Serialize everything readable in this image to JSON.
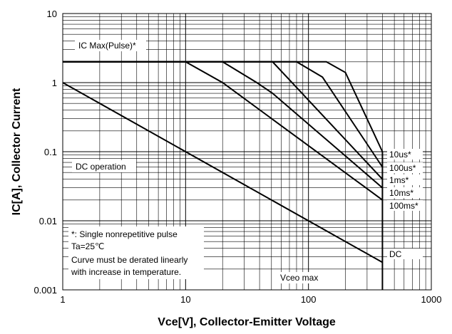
{
  "chart_data": {
    "type": "line",
    "xlabel": "Vce[V], Collector-Emitter Voltage",
    "ylabel": "IC[A], Collector Current",
    "xscale": "log",
    "yscale": "log",
    "xlim": [
      1,
      1000
    ],
    "ylim": [
      0.001,
      10
    ],
    "x_ticks": [
      "1",
      "10",
      "100",
      "1000"
    ],
    "y_ticks": [
      "0.001",
      "0.01",
      "0.1",
      "1",
      "10"
    ],
    "grid": true,
    "series": [
      {
        "name": "10us*",
        "x": [
          1,
          140,
          200,
          400
        ],
        "y": [
          2,
          2,
          1.4,
          0.1
        ]
      },
      {
        "name": "100us*",
        "x": [
          1,
          80,
          130,
          400
        ],
        "y": [
          2,
          2,
          1.2,
          0.06
        ]
      },
      {
        "name": "1ms*",
        "x": [
          1,
          51,
          400
        ],
        "y": [
          2,
          2,
          0.04
        ]
      },
      {
        "name": "10ms*",
        "x": [
          1,
          20,
          38,
          51,
          400
        ],
        "y": [
          2,
          2,
          1.0,
          0.7,
          0.03
        ]
      },
      {
        "name": "100ms*",
        "x": [
          1,
          10,
          20,
          400
        ],
        "y": [
          2,
          2,
          1.0,
          0.02
        ]
      },
      {
        "name": "DC",
        "x": [
          1,
          400
        ],
        "y": [
          1.0,
          0.0025
        ]
      }
    ],
    "vertical_limit": {
      "x": 400,
      "y": [
        0.001,
        0.1
      ]
    },
    "annotations": {
      "ic_max": "IC Max(Pulse)*",
      "dc_operation": "DC operation",
      "note_line1": "*: Single nonrepetitive pulse",
      "note_line2": "Ta=25℃",
      "note_line3": "Curve must be derated linearly",
      "note_line4": "with increase in temperature.",
      "vceo": "Vceo max"
    }
  }
}
